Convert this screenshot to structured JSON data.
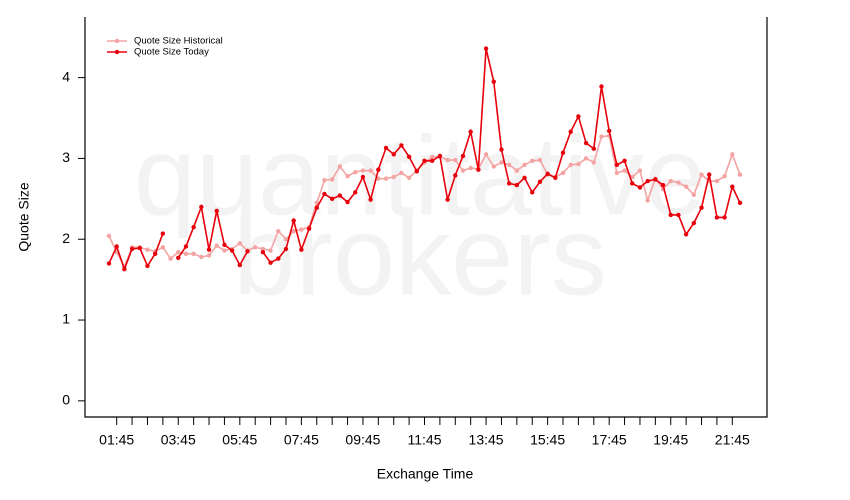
{
  "chart_data": {
    "type": "line",
    "watermark": [
      "quantitative",
      "brokers"
    ],
    "xlabel": "Exchange Time",
    "ylabel": "Quote Size",
    "categories": [
      null,
      "01:45",
      null,
      null,
      null,
      null,
      null,
      null,
      null,
      "03:45",
      null,
      null,
      null,
      null,
      null,
      null,
      null,
      "05:45",
      null,
      null,
      null,
      null,
      null,
      null,
      null,
      "07:45",
      null,
      null,
      null,
      null,
      null,
      null,
      null,
      "09:45",
      null,
      null,
      null,
      null,
      null,
      null,
      null,
      "11:45",
      null,
      null,
      null,
      null,
      null,
      null,
      null,
      "13:45",
      null,
      null,
      null,
      null,
      null,
      null,
      null,
      "15:45",
      null,
      null,
      null,
      null,
      null,
      null,
      null,
      "17:45",
      null,
      null,
      null,
      null,
      null,
      null,
      null,
      "19:45",
      null,
      null,
      null,
      null,
      null,
      null,
      null,
      "21:45",
      null
    ],
    "series": [
      {
        "name": "Quote Size Historical",
        "color": "#f4a3a3",
        "values": [
          2.04,
          1.84,
          1.66,
          1.9,
          1.9,
          1.87,
          1.85,
          1.9,
          1.76,
          1.84,
          1.82,
          1.82,
          1.78,
          1.8,
          1.92,
          1.86,
          1.88,
          1.95,
          1.86,
          1.9,
          1.88,
          1.86,
          2.1,
          2.0,
          2.1,
          2.12,
          2.15,
          2.45,
          2.73,
          2.74,
          2.9,
          2.78,
          2.83,
          2.85,
          2.85,
          2.75,
          2.75,
          2.77,
          2.82,
          2.76,
          2.85,
          2.95,
          3.02,
          3.02,
          2.98,
          2.98,
          2.85,
          2.88,
          2.87,
          3.05,
          2.9,
          2.95,
          2.92,
          2.85,
          2.92,
          2.97,
          2.98,
          2.8,
          2.77,
          2.82,
          2.92,
          2.93,
          3.0,
          2.95,
          3.27,
          3.28,
          2.82,
          2.85,
          2.77,
          2.85,
          2.48,
          2.75,
          2.62,
          2.72,
          2.7,
          2.65,
          2.55,
          2.8,
          2.72,
          2.72,
          2.78,
          3.05,
          2.8
        ]
      },
      {
        "name": "Quote Size Today",
        "color": "#e8000b",
        "values": [
          1.7,
          1.91,
          1.63,
          1.88,
          1.89,
          1.67,
          1.82,
          2.07,
          null,
          1.77,
          1.91,
          2.15,
          2.4,
          1.87,
          2.35,
          1.93,
          1.86,
          1.68,
          1.85,
          null,
          1.84,
          1.71,
          1.76,
          1.88,
          2.23,
          1.87,
          2.13,
          2.39,
          2.56,
          2.5,
          2.54,
          2.46,
          2.58,
          2.77,
          2.49,
          2.86,
          3.13,
          3.05,
          3.16,
          3.02,
          2.84,
          2.97,
          2.97,
          3.03,
          2.49,
          2.79,
          3.03,
          3.33,
          2.86,
          4.36,
          3.95,
          3.11,
          2.69,
          2.67,
          2.76,
          2.58,
          2.71,
          2.81,
          2.76,
          3.07,
          3.33,
          3.52,
          3.19,
          3.12,
          3.89,
          3.34,
          2.92,
          2.97,
          2.69,
          2.64,
          2.72,
          2.74,
          2.67,
          2.3,
          2.3,
          2.06,
          2.2,
          2.39,
          2.8,
          2.27,
          2.27,
          2.65,
          2.45
        ]
      }
    ],
    "ylim": [
      -0.2,
      4.75
    ],
    "yticks": [
      0,
      1,
      2,
      3,
      4
    ],
    "legend": "topleft"
  }
}
